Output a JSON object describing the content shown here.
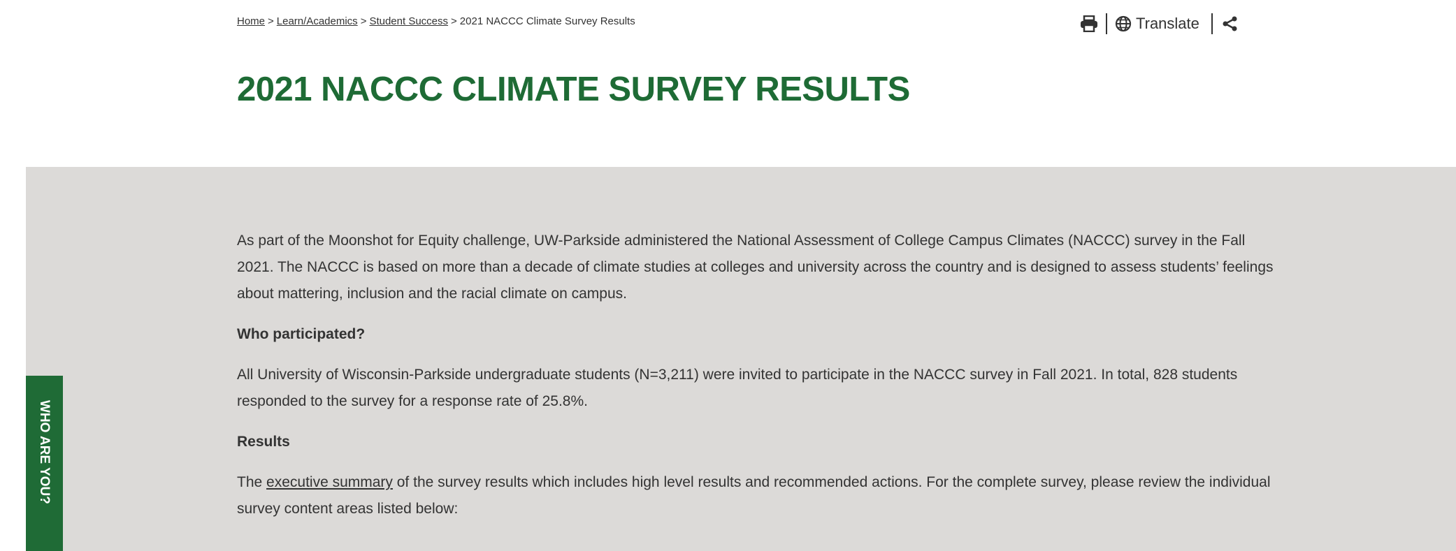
{
  "breadcrumb": {
    "separator": ">",
    "items": [
      "Home",
      "Learn/Academics",
      "Student Success",
      "2021 NACCC Climate Survey Results"
    ]
  },
  "toolbar": {
    "translate": "Translate"
  },
  "header": {
    "title": "2021 NACCC CLIMATE SURVEY RESULTS"
  },
  "content": {
    "intro": "As part of the Moonshot for Equity challenge, UW-Parkside administered the National Assessment of College Campus Climates (NACCC) survey in the Fall 2021.  The NACCC is based on more than a decade of climate studies at colleges and university across the country and is designed to assess students’ feelings about mattering, inclusion and the racial climate on campus.",
    "participants": {
      "heading": "Who participated?",
      "text": "All University of Wisconsin-Parkside undergraduate students (N=3,211) were invited to participate in the NACCC survey in Fall 2021. In total, 828 students responded to the survey for a response rate of 25.8%."
    },
    "results": {
      "heading": "Results",
      "text_before": "The ",
      "link": "executive summary",
      "text_after": " of the survey results which includes high level results and recommended actions.  For the complete survey, please review  the individual survey content areas listed below:"
    }
  },
  "side_tab": "WHO ARE YOU?"
}
